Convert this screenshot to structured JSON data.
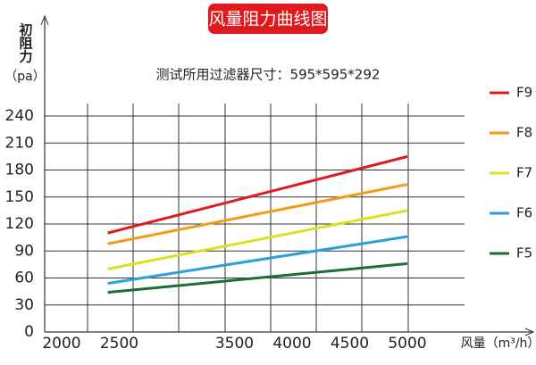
{
  "chart_data": {
    "type": "line",
    "title": "风量阻力曲线图",
    "subtitle": "测试所用过滤器尺寸：595*595*292",
    "y_label": "初阻力",
    "y_unit": "（pa）",
    "x_label": "风量（m³/h）",
    "x": [
      2400,
      5000
    ],
    "series": [
      {
        "name": "F9",
        "color": "#e0191e",
        "values": [
          110,
          195
        ]
      },
      {
        "name": "F8",
        "color": "#f39a1e",
        "values": [
          98,
          164
        ]
      },
      {
        "name": "F7",
        "color": "#d9e21f",
        "values": [
          70,
          135
        ]
      },
      {
        "name": "F6",
        "color": "#2c9fdc",
        "values": [
          54,
          106
        ]
      },
      {
        "name": "F5",
        "color": "#1a6e36",
        "values": [
          44,
          76
        ]
      }
    ],
    "xlim": [
      2000,
      5000
    ],
    "xticks": [
      2000,
      2500,
      3500,
      4000,
      4500,
      5000
    ],
    "ylim": [
      0,
      240
    ],
    "yticks": [
      0,
      30,
      60,
      90,
      120,
      150,
      180,
      210,
      240
    ],
    "grid": true,
    "legend": "right"
  }
}
